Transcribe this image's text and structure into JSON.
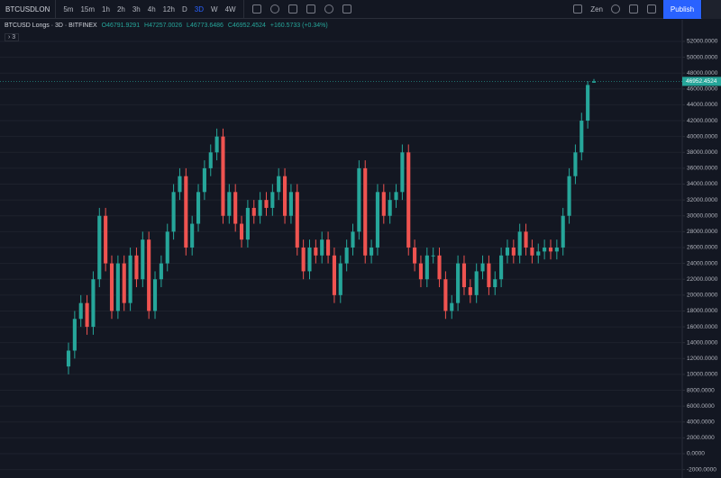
{
  "toolbar": {
    "symbol": "BTCUSDLON",
    "intervals": [
      "5m",
      "15m",
      "1h",
      "2h",
      "3h",
      "4h",
      "12h",
      "D",
      "3D",
      "W",
      "4W"
    ],
    "active_interval": "3D",
    "theme": "Zen",
    "publish": "Publish"
  },
  "legend": {
    "title": "BTCUSD Longs · 3D · BITFINEX",
    "open": "O46791.9291",
    "high": "H47257.0026",
    "low": "L46773.6486",
    "close": "C46952.4524",
    "change": "+160.5733 (+0.34%)",
    "indicators": "3"
  },
  "chart_data": {
    "type": "candlestick",
    "up_color": "#26a69a",
    "down_color": "#ef5350",
    "grid": true,
    "open": [
      11000,
      13000,
      17000,
      19000,
      16000,
      22000,
      30000,
      24000,
      18000,
      24000,
      19000,
      25000,
      22000,
      27000,
      18000,
      22000,
      24000,
      28000,
      33000,
      35000,
      26000,
      29000,
      33000,
      36000,
      38000,
      40000,
      30000,
      33000,
      29000,
      27000,
      31000,
      30000,
      32000,
      31000,
      33000,
      35000,
      30000,
      33000,
      26000,
      23000,
      26000,
      25000,
      27000,
      25000,
      20000,
      24000,
      26000,
      28000,
      36000,
      25000,
      26000,
      33000,
      30000,
      32000,
      33000,
      38000,
      26000,
      24000,
      22000,
      25000,
      25000,
      22000,
      18000,
      19000,
      24000,
      21000,
      20000,
      23000,
      24000,
      21000,
      22000,
      25000,
      26000,
      25000,
      28000,
      26000,
      25000,
      25500,
      26000,
      25500,
      26000,
      30000,
      35000,
      38000,
      42000,
      46791.9291
    ],
    "high": [
      14000,
      18000,
      20000,
      20000,
      23000,
      31000,
      31000,
      25000,
      25000,
      25000,
      26000,
      26000,
      28000,
      28000,
      23000,
      25000,
      29000,
      34000,
      36000,
      36000,
      30000,
      34000,
      37000,
      39000,
      41000,
      41000,
      34000,
      34000,
      30000,
      32000,
      32000,
      33000,
      33000,
      34000,
      36000,
      36000,
      34000,
      34000,
      27000,
      27000,
      27000,
      28000,
      28000,
      26000,
      25000,
      27000,
      29000,
      37000,
      37000,
      27000,
      34000,
      34000,
      33000,
      34000,
      39000,
      39000,
      27000,
      25000,
      26000,
      26000,
      26000,
      23000,
      20000,
      25000,
      25000,
      22000,
      24000,
      25000,
      25000,
      23000,
      26000,
      27000,
      27000,
      29000,
      29000,
      27000,
      26500,
      27000,
      27000,
      27000,
      31000,
      36000,
      39000,
      43000,
      47000,
      47257.0026
    ],
    "low": [
      10000,
      12000,
      16000,
      15000,
      15000,
      21000,
      23000,
      17000,
      17000,
      18000,
      18000,
      21000,
      21000,
      17000,
      17000,
      21000,
      23000,
      27000,
      32000,
      25000,
      25000,
      28000,
      32000,
      35000,
      37000,
      29000,
      29000,
      28000,
      26000,
      26000,
      29000,
      29000,
      30000,
      30000,
      32000,
      29000,
      29000,
      25000,
      22000,
      22000,
      24000,
      24000,
      24000,
      19000,
      19000,
      23000,
      25000,
      27000,
      24000,
      24000,
      25000,
      29000,
      29000,
      31000,
      32000,
      25000,
      23000,
      21000,
      21000,
      24000,
      21000,
      17000,
      17000,
      18000,
      20000,
      19000,
      19000,
      22000,
      20000,
      20000,
      21000,
      24000,
      24000,
      24000,
      25000,
      24000,
      24000,
      24500,
      24500,
      24500,
      25000,
      29000,
      34000,
      37000,
      41000,
      46773.6486
    ],
    "close": [
      13000,
      17000,
      19000,
      16000,
      22000,
      30000,
      24000,
      18000,
      24000,
      19000,
      25000,
      22000,
      27000,
      18000,
      22000,
      24000,
      28000,
      33000,
      35000,
      26000,
      29000,
      33000,
      36000,
      38000,
      40000,
      30000,
      33000,
      29000,
      27000,
      31000,
      30000,
      32000,
      31000,
      33000,
      35000,
      30000,
      33000,
      26000,
      23000,
      26000,
      25000,
      27000,
      25000,
      20000,
      24000,
      26000,
      28000,
      36000,
      25000,
      26000,
      33000,
      30000,
      32000,
      33000,
      38000,
      26000,
      24000,
      22000,
      25000,
      25000,
      22000,
      18000,
      19000,
      24000,
      21000,
      20000,
      23000,
      24000,
      21000,
      22000,
      25000,
      26000,
      25000,
      28000,
      26000,
      25000,
      25500,
      26000,
      25500,
      26000,
      30000,
      35000,
      38000,
      42000,
      46500,
      46952.4524
    ],
    "ylim": [
      -3065,
      54720
    ],
    "yticks": [
      {
        "value": -2000,
        "label": "-2000.0000"
      },
      {
        "value": 0,
        "label": "0.0000"
      },
      {
        "value": 2000,
        "label": "2000.0000"
      },
      {
        "value": 4000,
        "label": "4000.0000"
      },
      {
        "value": 6000,
        "label": "6000.0000"
      },
      {
        "value": 8000,
        "label": "8000.0000"
      },
      {
        "value": 10000,
        "label": "10000.0000"
      },
      {
        "value": 12000,
        "label": "12000.0000"
      },
      {
        "value": 14000,
        "label": "14000.0000"
      },
      {
        "value": 16000,
        "label": "16000.0000"
      },
      {
        "value": 18000,
        "label": "18000.0000"
      },
      {
        "value": 20000,
        "label": "20000.0000"
      },
      {
        "value": 22000,
        "label": "22000.0000"
      },
      {
        "value": 24000,
        "label": "24000.0000"
      },
      {
        "value": 26000,
        "label": "26000.0000"
      },
      {
        "value": 28000,
        "label": "28000.0000"
      },
      {
        "value": 30000,
        "label": "30000.0000"
      },
      {
        "value": 32000,
        "label": "32000.0000"
      },
      {
        "value": 34000,
        "label": "34000.0000"
      },
      {
        "value": 36000,
        "label": "36000.0000"
      },
      {
        "value": 38000,
        "label": "38000.0000"
      },
      {
        "value": 40000,
        "label": "40000.0000"
      },
      {
        "value": 42000,
        "label": "42000.0000"
      },
      {
        "value": 44000,
        "label": "44000.0000"
      },
      {
        "value": 46000,
        "label": "46000.0000"
      },
      {
        "value": 48000,
        "label": "48000.0000"
      },
      {
        "value": 50000,
        "label": "50000.0000"
      },
      {
        "value": 52000,
        "label": "52000.0000"
      }
    ]
  }
}
